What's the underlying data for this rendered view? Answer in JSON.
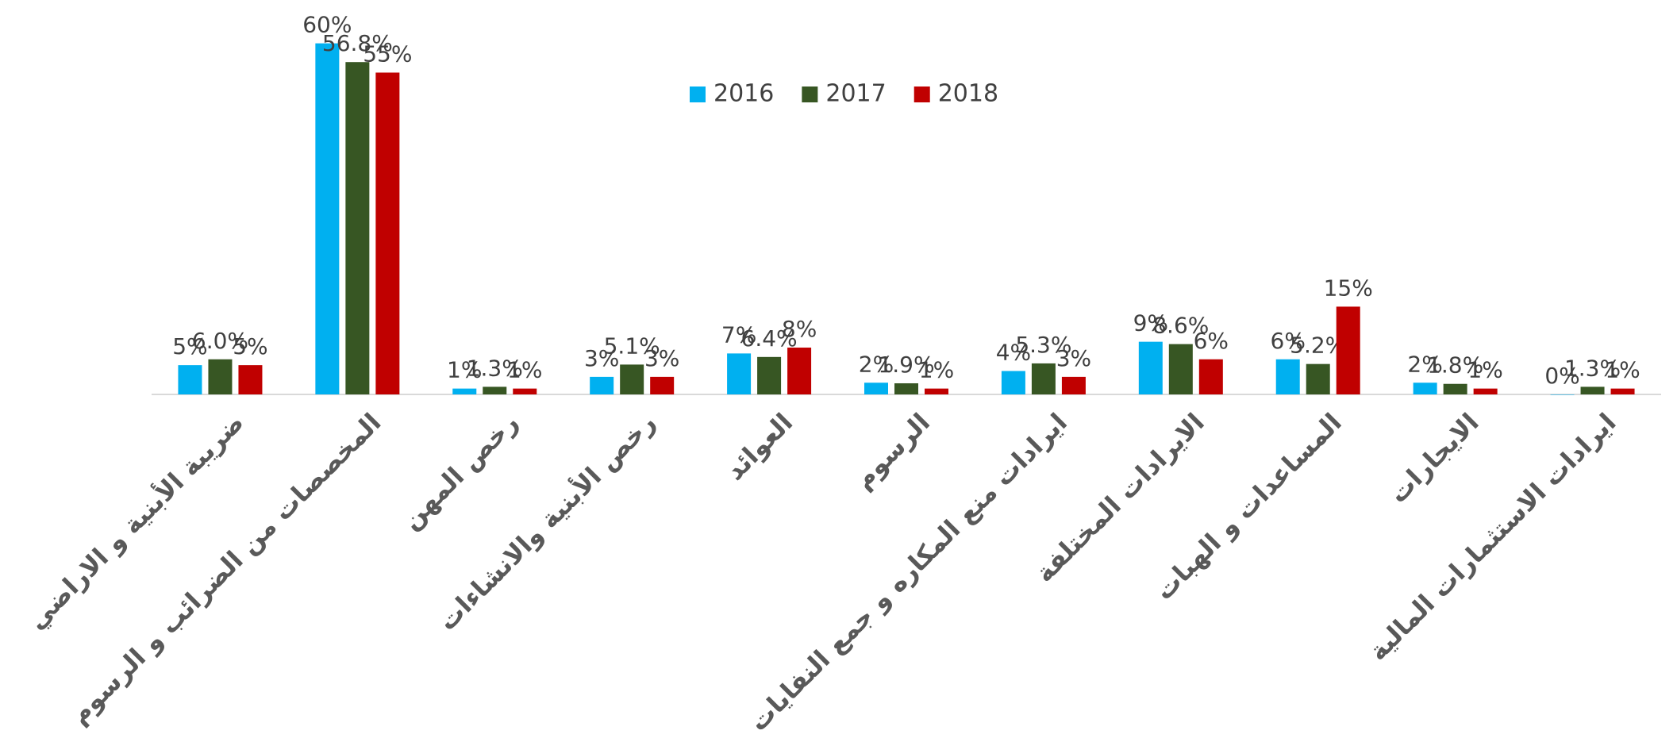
{
  "chart_data": {
    "type": "bar",
    "categories": [
      "ضريبة الأبنية و الاراضي",
      "المخصصات من الضرائب و الرسوم",
      "رخص المهن",
      "رخص الأبنية والانشاءات",
      "العوائد",
      "الرسوم",
      "ايرادات منع المكاره و جمع النفايات",
      "الايرادات المختلفة",
      "المساعدات و الهبات",
      "الايجارات",
      "ايرادات الاستثمارات المالية"
    ],
    "series": [
      {
        "name": "2016",
        "color": "#00b0f0",
        "values": [
          5,
          60,
          1,
          3,
          7,
          2,
          4,
          9,
          6,
          2,
          0
        ],
        "value_labels": [
          "5%",
          "60%",
          "1%",
          "3%",
          "7%",
          "2%",
          "4%",
          "9%",
          "6%",
          "2%",
          "0%"
        ]
      },
      {
        "name": "2017",
        "color": "#375623",
        "values": [
          6.0,
          56.8,
          1.3,
          5.1,
          6.4,
          1.9,
          5.3,
          8.6,
          5.2,
          1.8,
          1.3
        ],
        "value_labels": [
          "6.0%",
          "56.8%",
          "1.3%",
          "5.1%",
          "6.4%",
          "1.9%",
          "5.3%",
          "8.6%",
          "5.2%",
          "1.8%",
          "1.3%"
        ]
      },
      {
        "name": "2018",
        "color": "#c00000",
        "values": [
          5,
          55,
          1,
          3,
          8,
          1,
          3,
          6,
          15,
          1,
          1
        ],
        "value_labels": [
          "5%",
          "55%",
          "1%",
          "3%",
          "8%",
          "1%",
          "3%",
          "6%",
          "15%",
          "1%",
          "1%"
        ]
      }
    ],
    "ylim": [
      0,
      67
    ],
    "legend": "top"
  }
}
